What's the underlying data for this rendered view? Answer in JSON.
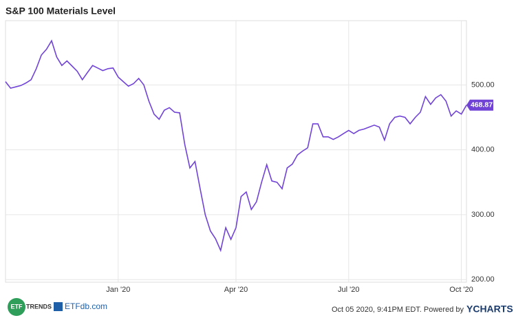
{
  "chart_data": {
    "type": "line",
    "title": "S&P 100 Materials Level",
    "categories": [
      null,
      null,
      null,
      null,
      null,
      null,
      null,
      null,
      null,
      null,
      null,
      null,
      null,
      null,
      null,
      null,
      null,
      null,
      null,
      null,
      null,
      null,
      "Jan '20",
      null,
      null,
      null,
      null,
      null,
      null,
      null,
      null,
      null,
      null,
      null,
      null,
      null,
      null,
      null,
      null,
      null,
      null,
      null,
      null,
      null,
      null,
      "Apr '20",
      null,
      null,
      null,
      null,
      null,
      null,
      null,
      null,
      null,
      null,
      null,
      null,
      null,
      null,
      null,
      null,
      null,
      null,
      null,
      null,
      null,
      "Jul '20",
      null,
      null,
      null,
      null,
      null,
      null,
      null,
      null,
      null,
      null,
      null,
      null,
      null,
      null,
      null,
      null,
      null,
      null,
      null,
      null,
      null,
      "Oct '20",
      null
    ],
    "values": [
      505,
      495,
      497,
      499,
      503,
      508,
      525,
      546,
      555,
      568,
      543,
      530,
      537,
      529,
      521,
      508,
      519,
      530,
      526,
      522,
      525,
      526,
      512,
      505,
      498,
      502,
      510,
      500,
      475,
      455,
      447,
      461,
      465,
      458,
      457,
      408,
      372,
      382,
      340,
      300,
      275,
      263,
      245,
      280,
      262,
      280,
      328,
      335,
      308,
      320,
      350,
      377,
      352,
      350,
      340,
      372,
      378,
      392,
      398,
      403,
      440,
      440,
      420,
      420,
      416,
      420,
      425,
      430,
      425,
      430,
      432,
      435,
      438,
      435,
      415,
      440,
      450,
      452,
      450,
      440,
      450,
      458,
      482,
      470,
      480,
      485,
      475,
      452,
      460,
      455,
      468.87
    ],
    "color": "#7043d6",
    "ylim": [
      196,
      599
    ],
    "yticks": [
      {
        "value": 200,
        "label": "200.00"
      },
      {
        "value": 300,
        "label": "300.00"
      },
      {
        "value": 400,
        "label": "400.00"
      },
      {
        "value": 500,
        "label": "500.00"
      }
    ],
    "grid": true
  },
  "footer": {
    "timestamp": "Oct 05 2020, 9:41PM EDT. Powered by",
    "brand": "YCHARTS",
    "logo1": "ETF",
    "logo1_text": "TRENDS",
    "logo2": "ETFdb.com"
  }
}
